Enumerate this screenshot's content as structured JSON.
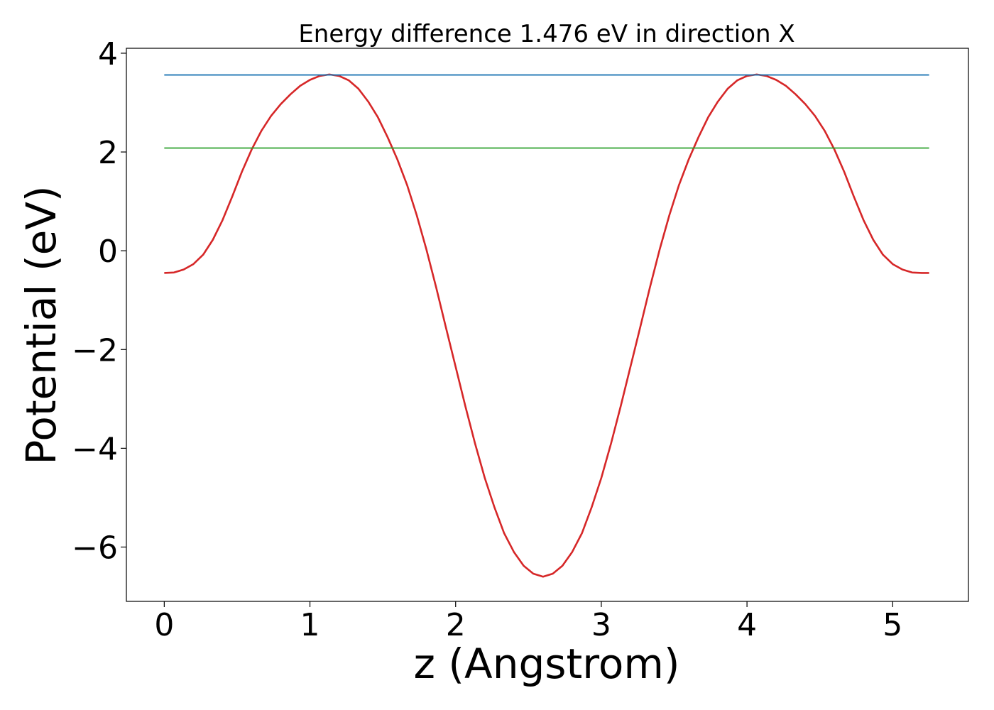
{
  "chart_data": {
    "type": "line",
    "title": "Energy difference 1.476 eV in direction X",
    "xlabel": "z (Angstrom)",
    "ylabel": "Potential (eV)",
    "xlim": [
      -0.26,
      5.52
    ],
    "ylim": [
      -7.1,
      4.1
    ],
    "xticks": [
      0,
      1,
      2,
      3,
      4,
      5
    ],
    "yticks": [
      -6,
      -4,
      -2,
      0,
      2,
      4
    ],
    "xtick_labels": [
      "0",
      "1",
      "2",
      "3",
      "4",
      "5"
    ],
    "ytick_labels": [
      "−6",
      "−4",
      "−2",
      "0",
      "2",
      "4"
    ],
    "grid": false,
    "series": [
      {
        "color": "#d62728",
        "x": [
          0.0,
          0.067,
          0.133,
          0.2,
          0.267,
          0.333,
          0.4,
          0.467,
          0.533,
          0.6,
          0.667,
          0.733,
          0.8,
          0.867,
          0.933,
          1.0,
          1.067,
          1.133,
          1.2,
          1.267,
          1.333,
          1.4,
          1.467,
          1.533,
          1.6,
          1.667,
          1.733,
          1.8,
          1.867,
          1.933,
          2.0,
          2.067,
          2.133,
          2.2,
          2.267,
          2.333,
          2.4,
          2.467,
          2.533,
          2.6,
          2.667,
          2.733,
          2.8,
          2.867,
          2.933,
          3.0,
          3.067,
          3.133,
          3.2,
          3.267,
          3.333,
          3.4,
          3.467,
          3.533,
          3.6,
          3.667,
          3.733,
          3.8,
          3.867,
          3.933,
          4.0,
          4.067,
          4.133,
          4.2,
          4.267,
          4.333,
          4.4,
          4.467,
          4.533,
          4.6,
          4.667,
          4.733,
          4.8,
          4.867,
          4.933,
          5.0,
          5.067,
          5.133,
          5.2,
          5.25
        ],
        "y": [
          -0.45,
          -0.44,
          -0.38,
          -0.27,
          -0.08,
          0.22,
          0.62,
          1.1,
          1.6,
          2.05,
          2.43,
          2.73,
          2.97,
          3.17,
          3.34,
          3.46,
          3.54,
          3.57,
          3.54,
          3.45,
          3.28,
          3.02,
          2.7,
          2.3,
          1.85,
          1.33,
          0.72,
          0.02,
          -0.75,
          -1.55,
          -2.35,
          -3.15,
          -3.9,
          -4.6,
          -5.2,
          -5.72,
          -6.1,
          -6.38,
          -6.54,
          -6.6,
          -6.54,
          -6.38,
          -6.1,
          -5.72,
          -5.2,
          -4.6,
          -3.9,
          -3.15,
          -2.35,
          -1.55,
          -0.75,
          0.02,
          0.72,
          1.33,
          1.85,
          2.3,
          2.7,
          3.02,
          3.28,
          3.45,
          3.54,
          3.57,
          3.54,
          3.46,
          3.34,
          3.17,
          2.97,
          2.73,
          2.43,
          2.05,
          1.6,
          1.1,
          0.62,
          0.22,
          -0.08,
          -0.27,
          -0.38,
          -0.44,
          -0.45,
          -0.45
        ]
      },
      {
        "color": "#1f77b4",
        "x": [
          0.0,
          5.25
        ],
        "y": [
          3.56,
          3.56
        ]
      },
      {
        "color": "#2ca02c",
        "x": [
          0.0,
          5.25
        ],
        "y": [
          2.08,
          2.08
        ]
      }
    ]
  }
}
